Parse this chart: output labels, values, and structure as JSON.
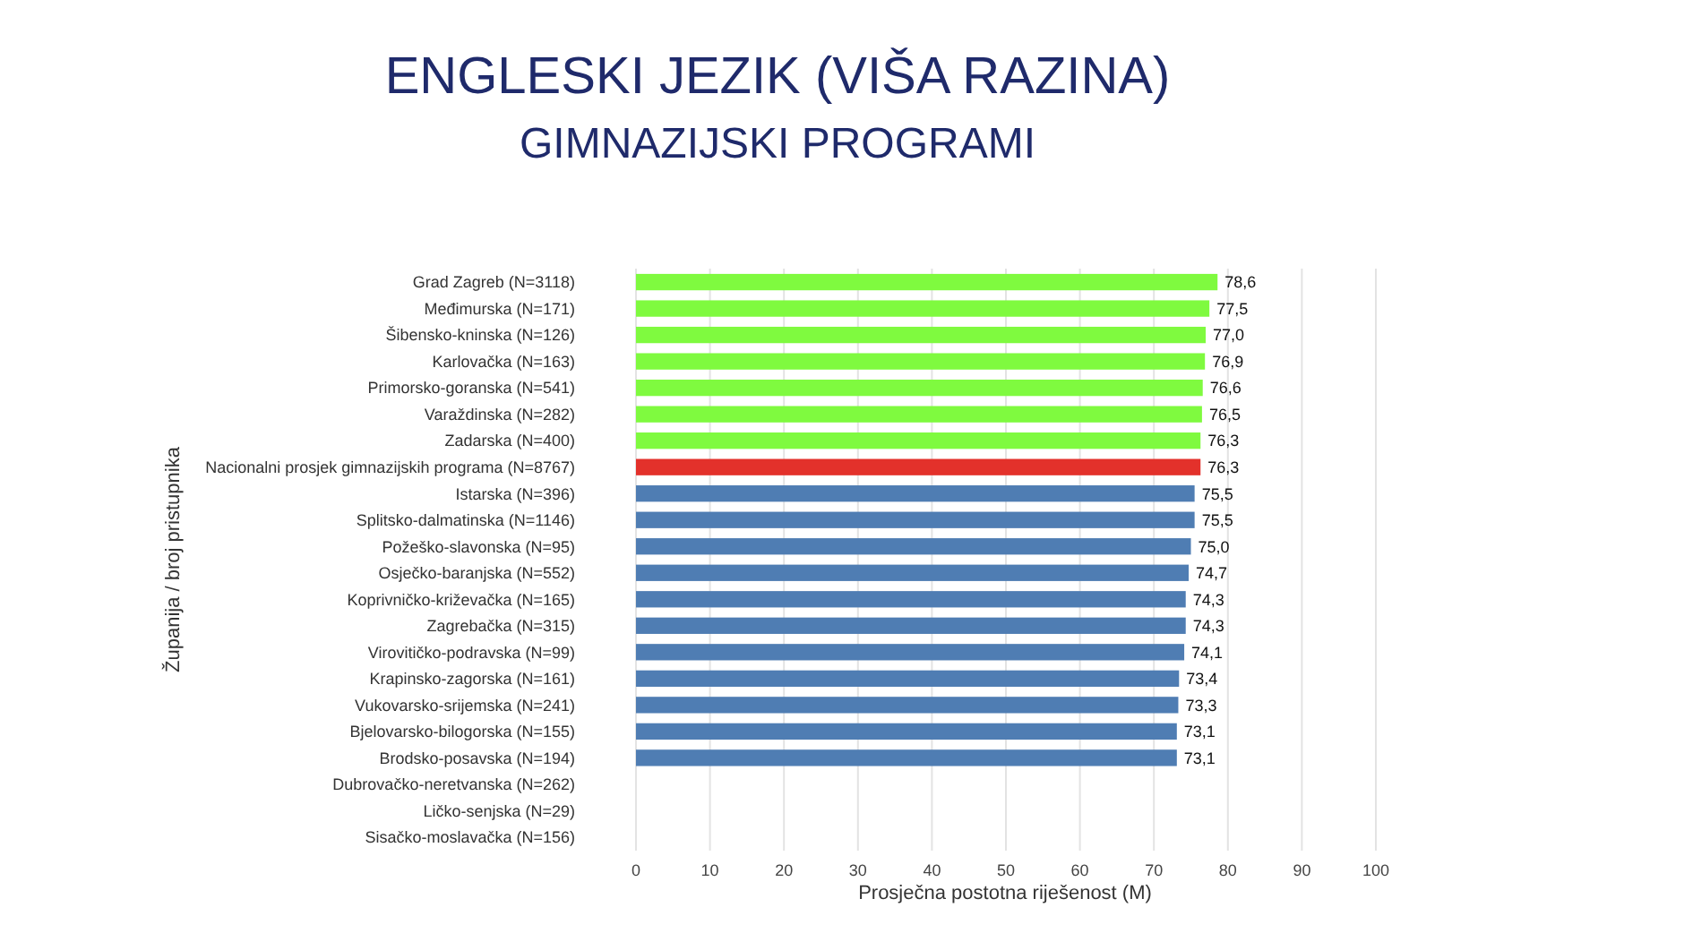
{
  "chart_data": {
    "type": "bar",
    "orientation": "horizontal",
    "title": "ENGLESKI JEZIK (VIŠA RAZINA)",
    "subtitle": "GIMNAZIJSKI PROGRAMI",
    "xlabel": "Prosječna postotna riješenost (M)",
    "ylabel": "Županija / broj pristupnika",
    "categories": [
      "Grad Zagreb (N=3118)",
      "Međimurska (N=171)",
      "Šibensko-kninska (N=126)",
      "Karlovačka (N=163)",
      "Primorsko-goranska (N=541)",
      "Varaždinska (N=282)",
      "Zadarska (N=400)",
      "Nacionalni prosjek gimnazijskih programa (N=8767)",
      "Istarska (N=396)",
      "Splitsko-dalmatinska (N=1146)",
      "Požeško-slavonska (N=95)",
      "Osječko-baranjska (N=552)",
      "Koprivničko-križevačka (N=165)",
      "Zagrebačka (N=315)",
      "Virovitičko-podravska (N=99)",
      "Krapinsko-zagorska (N=161)",
      "Vukovarsko-srijemska (N=241)",
      "Bjelovarsko-bilogorska (N=155)",
      "Brodsko-posavska (N=194)",
      "Dubrovačko-neretvanska (N=262)",
      "Ličko-senjska (N=29)",
      "Sisačko-moslavačka (N=156)"
    ],
    "values": [
      78.6,
      77.5,
      77.0,
      76.9,
      76.6,
      76.5,
      76.3,
      76.3,
      75.5,
      75.5,
      75.0,
      74.7,
      74.3,
      74.3,
      74.1,
      73.4,
      73.3,
      73.1,
      73.1,
      null,
      null,
      null
    ],
    "value_labels": [
      "78,6",
      "77,5",
      "77,0",
      "76,9",
      "76,6",
      "76,5",
      "76,3",
      "76,3",
      "75,5",
      "75,5",
      "75,0",
      "74,7",
      "74,3",
      "74,3",
      "74,1",
      "73,4",
      "73,3",
      "73,1",
      "73,1",
      null,
      null,
      null
    ],
    "colors": [
      "#7ffa3f",
      "#7ffa3f",
      "#7ffa3f",
      "#7ffa3f",
      "#7ffa3f",
      "#7ffa3f",
      "#7ffa3f",
      "#e3312b",
      "#4f7db3",
      "#4f7db3",
      "#4f7db3",
      "#4f7db3",
      "#4f7db3",
      "#4f7db3",
      "#4f7db3",
      "#4f7db3",
      "#4f7db3",
      "#4f7db3",
      "#4f7db3",
      null,
      null,
      null
    ],
    "xlim": [
      0,
      100
    ],
    "xticks": [
      0,
      10,
      20,
      30,
      40,
      50,
      60,
      70,
      80,
      90,
      100
    ],
    "grid": "x"
  }
}
